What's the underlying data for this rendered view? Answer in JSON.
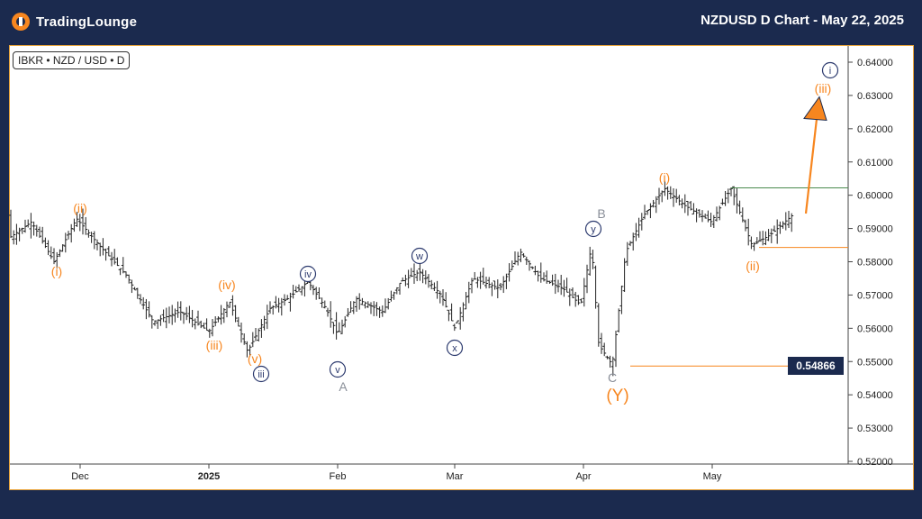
{
  "brand": {
    "name": "TradingLounge"
  },
  "header": {
    "title": "NZDUSD D Chart - May 22, 2025"
  },
  "symbol_label": "IBKR • NZD / USD • D",
  "colors": {
    "background": "#1b2a4e",
    "accent": "#f7861f",
    "navy": "#2c3a6e",
    "gray": "#8a8f99",
    "green": "#4b8a4e"
  },
  "price_badge": "0.54866",
  "chart_data": {
    "type": "ohlc",
    "ylim": [
      0.515,
      0.6475
    ],
    "y_ticks": [
      "0.64000",
      "0.63000",
      "0.62000",
      "0.61000",
      "0.60000",
      "0.59000",
      "0.58000",
      "0.57000",
      "0.56000",
      "0.55000",
      "0.54000",
      "0.53000",
      "0.52000"
    ],
    "x_ticks": [
      {
        "label": "Dec",
        "bold": false
      },
      {
        "label": "2025",
        "bold": true
      },
      {
        "label": "Feb",
        "bold": false
      },
      {
        "label": "Mar",
        "bold": false
      },
      {
        "label": "Apr",
        "bold": false
      },
      {
        "label": "May",
        "bold": false
      }
    ],
    "wave_labels": [
      {
        "text": "i",
        "style": "orange"
      },
      {
        "text": "ii",
        "style": "orange"
      },
      {
        "text": "iii",
        "style": "orange"
      },
      {
        "text": "iv",
        "style": "orange"
      },
      {
        "text": "v",
        "style": "orange"
      },
      {
        "text": "iii",
        "style": "navy-circle"
      },
      {
        "text": "iv",
        "style": "navy-circle"
      },
      {
        "text": "v",
        "style": "navy-circle"
      },
      {
        "text": "A",
        "style": "gray"
      },
      {
        "text": "w",
        "style": "navy-circle"
      },
      {
        "text": "x",
        "style": "navy-circle"
      },
      {
        "text": "y",
        "style": "navy-circle"
      },
      {
        "text": "B",
        "style": "gray"
      },
      {
        "text": "C",
        "style": "gray"
      },
      {
        "text": "Y",
        "style": "orange-big"
      },
      {
        "text": "i",
        "style": "orange"
      },
      {
        "text": "ii",
        "style": "orange"
      },
      {
        "text": "iii",
        "style": "orange"
      },
      {
        "text": "i",
        "style": "navy-circle"
      }
    ],
    "levels": [
      {
        "value": 0.6022,
        "color": "#4b8a4e"
      },
      {
        "value": 0.5843,
        "color": "#f7861f"
      },
      {
        "value": 0.54866,
        "color": "#f7861f"
      }
    ],
    "projection": {
      "from": 0.5945,
      "to": 0.6285
    }
  }
}
